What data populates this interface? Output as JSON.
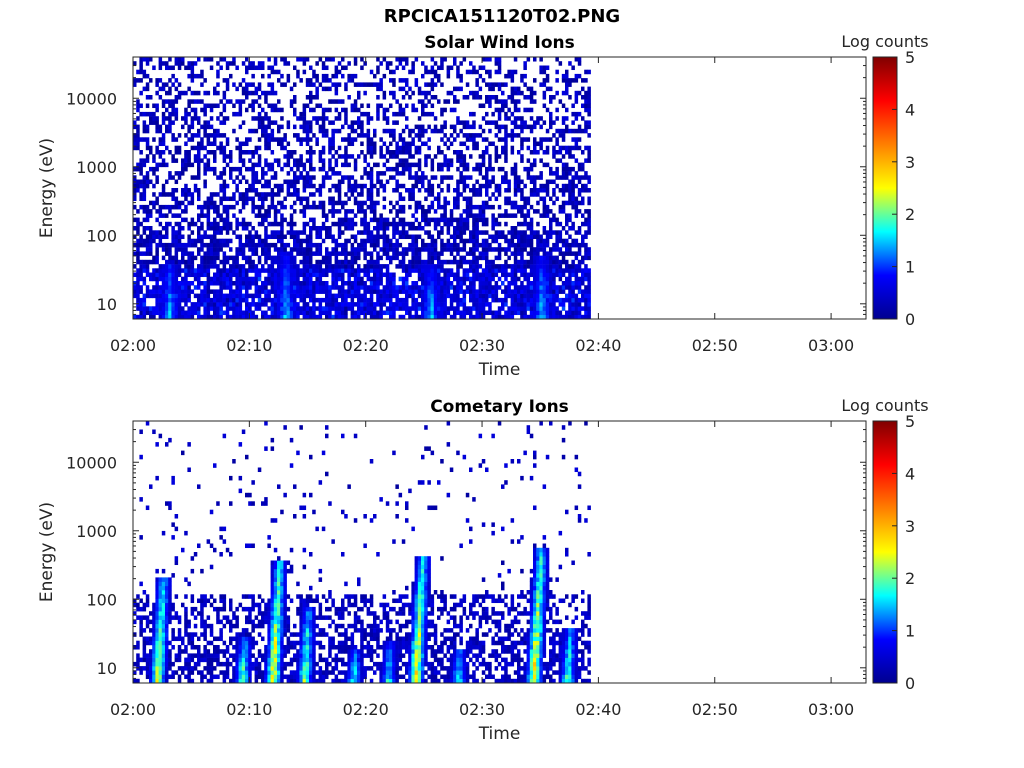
{
  "figure": {
    "title": "RPCICA151120T02.PNG"
  },
  "colormap": {
    "stops": [
      "#00008f",
      "#0000ff",
      "#00ffff",
      "#ffff00",
      "#ff7f00",
      "#ff0000",
      "#800000"
    ],
    "label": "Log counts",
    "ticks": [
      "0",
      "1",
      "2",
      "3",
      "4",
      "5"
    ],
    "range": [
      0,
      5
    ]
  },
  "chart_data": [
    {
      "type": "heatmap",
      "title": "Solar Wind Ions",
      "xlabel": "Time",
      "ylabel": "Energy (eV)",
      "x_ticks": [
        "02:00",
        "02:10",
        "02:20",
        "02:30",
        "02:40",
        "02:50",
        "03:00"
      ],
      "xlim_minutes": [
        0,
        63
      ],
      "data_extent_minutes": [
        0,
        39.5
      ],
      "y_scale": "log",
      "y_ticks": [
        "10",
        "100",
        "1000",
        "10000"
      ],
      "ylim": [
        6,
        40000
      ],
      "colorbar_label": "Log counts",
      "colorbar_range": [
        0,
        5
      ],
      "features": [
        {
          "minute": 3,
          "peak_energy": 40,
          "peak_log_counts": 1.6
        },
        {
          "minute": 13,
          "peak_energy": 60,
          "peak_log_counts": 1.6
        },
        {
          "minute": 25.5,
          "peak_energy": 40,
          "peak_log_counts": 1.6
        },
        {
          "minute": 35,
          "peak_energy": 50,
          "peak_log_counts": 1.6
        }
      ]
    },
    {
      "type": "heatmap",
      "title": "Cometary Ions",
      "xlabel": "Time",
      "ylabel": "Energy (eV)",
      "x_ticks": [
        "02:00",
        "02:10",
        "02:20",
        "02:30",
        "02:40",
        "02:50",
        "03:00"
      ],
      "xlim_minutes": [
        0,
        63
      ],
      "data_extent_minutes": [
        0,
        39.5
      ],
      "y_scale": "log",
      "y_ticks": [
        "10",
        "100",
        "1000",
        "10000"
      ],
      "ylim": [
        6,
        40000
      ],
      "colorbar_label": "Log counts",
      "colorbar_range": [
        0,
        5
      ],
      "features": [
        {
          "minute": 2.5,
          "peak_energy": 200,
          "peak_log_counts": 2.8
        },
        {
          "minute": 9.5,
          "peak_energy": 30,
          "peak_log_counts": 2.3
        },
        {
          "minute": 12.5,
          "peak_energy": 350,
          "peak_log_counts": 3.0
        },
        {
          "minute": 15,
          "peak_energy": 80,
          "peak_log_counts": 2.4
        },
        {
          "minute": 19,
          "peak_energy": 20,
          "peak_log_counts": 2.0
        },
        {
          "minute": 22,
          "peak_energy": 25,
          "peak_log_counts": 2.0
        },
        {
          "minute": 24.8,
          "peak_energy": 400,
          "peak_log_counts": 3.0
        },
        {
          "minute": 28,
          "peak_energy": 20,
          "peak_log_counts": 2.0
        },
        {
          "minute": 35,
          "peak_energy": 600,
          "peak_log_counts": 3.0
        },
        {
          "minute": 37.5,
          "peak_energy": 40,
          "peak_log_counts": 2.3
        }
      ]
    }
  ]
}
